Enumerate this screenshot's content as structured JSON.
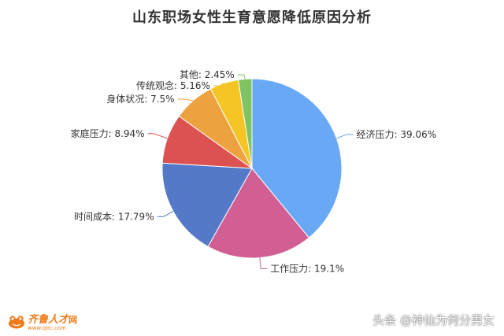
{
  "chart_data": {
    "type": "pie",
    "title": "山东职场女性生育意愿降低原因分析",
    "slices": [
      {
        "label": "经济压力",
        "value": 39.06,
        "label_text": "经济压力: 39.06%",
        "color": "#68a8f5"
      },
      {
        "label": "工作压力",
        "value": 19.1,
        "label_text": "工作压力: 19.1%",
        "color": "#d15f93"
      },
      {
        "label": "时间成本",
        "value": 17.79,
        "label_text": "时间成本: 17.79%",
        "color": "#5479c9"
      },
      {
        "label": "家庭压力",
        "value": 8.94,
        "label_text": "家庭压力: 8.94%",
        "color": "#dc5250"
      },
      {
        "label": "身体状况",
        "value": 7.5,
        "label_text": "身体状况: 7.5%",
        "color": "#eda23f"
      },
      {
        "label": "传统观念",
        "value": 5.16,
        "label_text": "传统观念: 5.16%",
        "color": "#f4c525"
      },
      {
        "label": "其他",
        "value": 2.45,
        "label_text": "其他: 2.45%",
        "color": "#7fc463"
      }
    ]
  },
  "logo": {
    "name": "齐鲁人才",
    "suffix": "网",
    "url": "www.qlrc.com"
  },
  "watermark": "头条 @神仙为何分男女"
}
